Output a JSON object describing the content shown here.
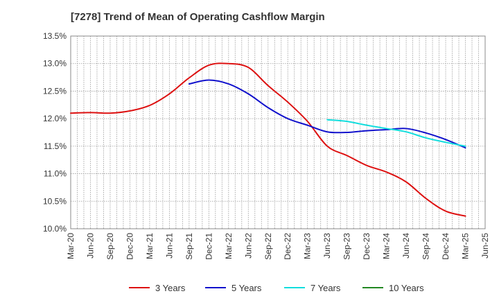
{
  "chart_data": {
    "type": "line",
    "title": "[7278]  Trend of Mean of Operating Cashflow Margin",
    "xlabel": "",
    "ylabel": "",
    "ylim": [
      10.0,
      13.5
    ],
    "yticks": [
      "10.0%",
      "10.5%",
      "11.0%",
      "11.5%",
      "12.0%",
      "12.5%",
      "13.0%",
      "13.5%"
    ],
    "ytick_values": [
      10.0,
      10.5,
      11.0,
      11.5,
      12.0,
      12.5,
      13.0,
      13.5
    ],
    "xticks": [
      "Mar-20",
      "Jun-20",
      "Sep-20",
      "Dec-20",
      "Mar-21",
      "Jun-21",
      "Sep-21",
      "Dec-21",
      "Mar-22",
      "Jun-22",
      "Sep-22",
      "Dec-22",
      "Mar-23",
      "Jun-23",
      "Sep-23",
      "Dec-23",
      "Mar-24",
      "Jun-24",
      "Sep-24",
      "Dec-24",
      "Mar-25",
      "Jun-25"
    ],
    "grid": true,
    "legend_position": "bottom",
    "series": [
      {
        "name": "3 Years",
        "color": "#dd1111",
        "start_index": 0,
        "values": [
          12.1,
          12.11,
          12.1,
          12.14,
          12.24,
          12.45,
          12.74,
          12.97,
          13.0,
          12.93,
          12.6,
          12.3,
          11.95,
          11.5,
          11.33,
          11.15,
          11.03,
          10.85,
          10.55,
          10.32,
          10.23
        ]
      },
      {
        "name": "5 Years",
        "color": "#1111cc",
        "start_index": 6,
        "values": [
          12.63,
          12.7,
          12.63,
          12.45,
          12.2,
          12.0,
          11.88,
          11.76,
          11.75,
          11.78,
          11.8,
          11.82,
          11.74,
          11.62,
          11.47
        ]
      },
      {
        "name": "7 Years",
        "color": "#11dddd",
        "start_index": 13,
        "values": [
          11.98,
          11.95,
          11.88,
          11.82,
          11.76,
          11.65,
          11.57,
          11.5
        ]
      },
      {
        "name": "10 Years",
        "color": "#228822",
        "start_index": 0,
        "values": []
      }
    ]
  }
}
